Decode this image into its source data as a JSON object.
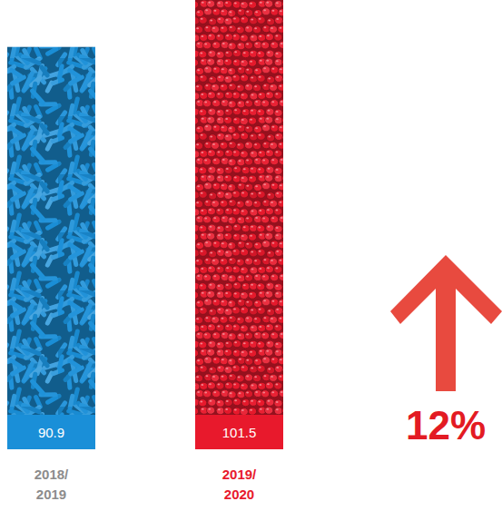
{
  "chart_data": {
    "type": "bar",
    "categories": [
      "2018/\n2019",
      "2019/\n2020"
    ],
    "values": [
      90.9,
      101.5
    ],
    "colors": [
      "#1a8fd8",
      "#e8192c"
    ],
    "ylim": [
      0,
      101.5
    ],
    "tick_labels": false,
    "grid": false,
    "data_labels": true,
    "annotations": [
      {
        "text": "12%"
      }
    ]
  }
}
